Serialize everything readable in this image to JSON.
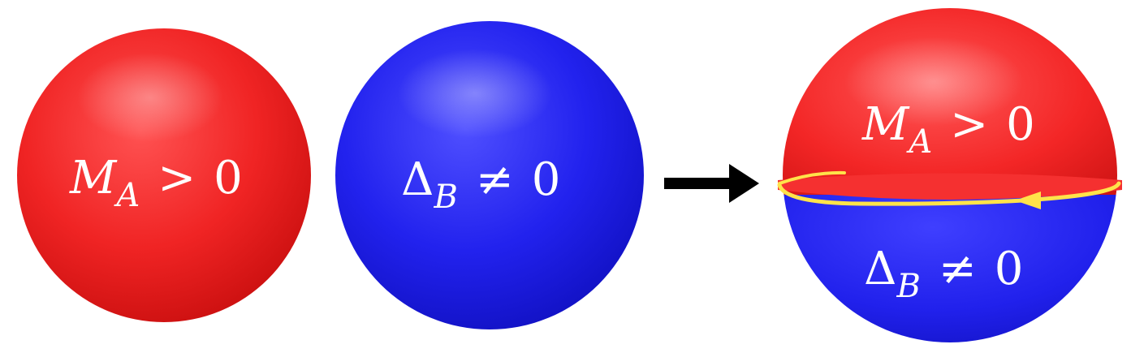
{
  "colors": {
    "red_sphere": "#ee1a1a",
    "blue_sphere": "#1b1be6",
    "boundary_loop": "#ffe34a",
    "arrow": "#000000",
    "label_text": "#ffffff"
  },
  "spheres": [
    {
      "id": "sphere-a",
      "color": "red",
      "label": {
        "symbol": "M",
        "subscript": "A",
        "relation": ">",
        "rhs": "0"
      }
    },
    {
      "id": "sphere-b",
      "color": "blue",
      "label": {
        "symbol": "Δ",
        "subscript": "B",
        "relation": "≠",
        "rhs": "0"
      }
    }
  ],
  "arrow": {
    "meaning": "combine"
  },
  "combined_sphere": {
    "top": {
      "symbol": "M",
      "subscript": "A",
      "relation": ">",
      "rhs": "0"
    },
    "bottom": {
      "symbol": "Δ",
      "subscript": "B",
      "relation": "≠",
      "rhs": "0"
    },
    "boundary": {
      "type": "chiral-edge-loop"
    }
  }
}
